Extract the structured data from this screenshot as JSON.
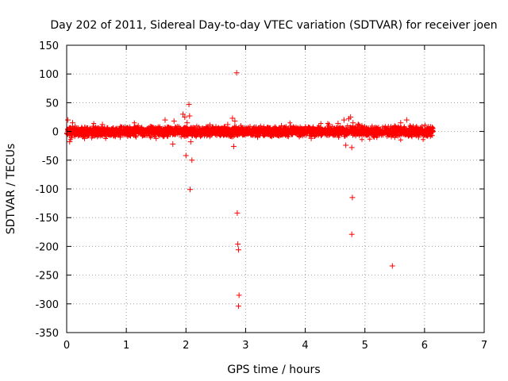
{
  "chart_data": {
    "type": "scatter",
    "title": "Day 202 of 2011, Sidereal Day-to-day VTEC variation (SDTVAR) for receiver joen",
    "xlabel": "GPS time / hours",
    "ylabel": "SDTVAR / TECUs",
    "xlim": [
      0,
      7
    ],
    "ylim": [
      -350,
      150
    ],
    "xticks": [
      0,
      1,
      2,
      3,
      4,
      5,
      6,
      7
    ],
    "yticks": [
      150,
      100,
      50,
      0,
      -50,
      -100,
      -150,
      -200,
      -250,
      -300,
      -350
    ],
    "grid": true,
    "marker": "+",
    "color": "#ff0000",
    "dense_band": {
      "x_range": [
        0,
        6.15
      ],
      "y_typical_range": [
        -10,
        10
      ],
      "description_note": "dense band of samples near zero"
    },
    "series": [
      {
        "name": "SDTVAR",
        "points": [
          [
            0.02,
            20
          ],
          [
            0.05,
            -18
          ],
          [
            0.1,
            15
          ],
          [
            0.3,
            -12
          ],
          [
            0.6,
            12
          ],
          [
            0.9,
            -10
          ],
          [
            1.2,
            10
          ],
          [
            1.5,
            -12
          ],
          [
            1.65,
            20
          ],
          [
            1.8,
            18
          ],
          [
            1.78,
            -22
          ],
          [
            1.95,
            30
          ],
          [
            1.98,
            25
          ],
          [
            2.0,
            -42
          ],
          [
            2.02,
            15
          ],
          [
            2.05,
            47
          ],
          [
            2.06,
            27
          ],
          [
            2.08,
            -18
          ],
          [
            2.1,
            -50
          ],
          [
            2.07,
            -101
          ],
          [
            2.45,
            8
          ],
          [
            2.7,
            12
          ],
          [
            2.78,
            23
          ],
          [
            2.8,
            -26
          ],
          [
            2.82,
            18
          ],
          [
            2.85,
            102
          ],
          [
            2.86,
            -142
          ],
          [
            2.87,
            -196
          ],
          [
            2.88,
            -206
          ],
          [
            2.89,
            -285
          ],
          [
            2.88,
            -304
          ],
          [
            3.2,
            -10
          ],
          [
            3.6,
            10
          ],
          [
            4.1,
            -12
          ],
          [
            4.4,
            12
          ],
          [
            4.55,
            14
          ],
          [
            4.65,
            20
          ],
          [
            4.68,
            -24
          ],
          [
            4.73,
            22
          ],
          [
            4.76,
            25
          ],
          [
            4.78,
            -28
          ],
          [
            4.8,
            15
          ],
          [
            4.79,
            -115
          ],
          [
            4.78,
            -179
          ],
          [
            4.95,
            10
          ],
          [
            5.2,
            -10
          ],
          [
            5.46,
            -234
          ],
          [
            5.6,
            15
          ],
          [
            5.7,
            20
          ],
          [
            5.9,
            -10
          ],
          [
            6.1,
            8
          ]
        ]
      }
    ]
  }
}
